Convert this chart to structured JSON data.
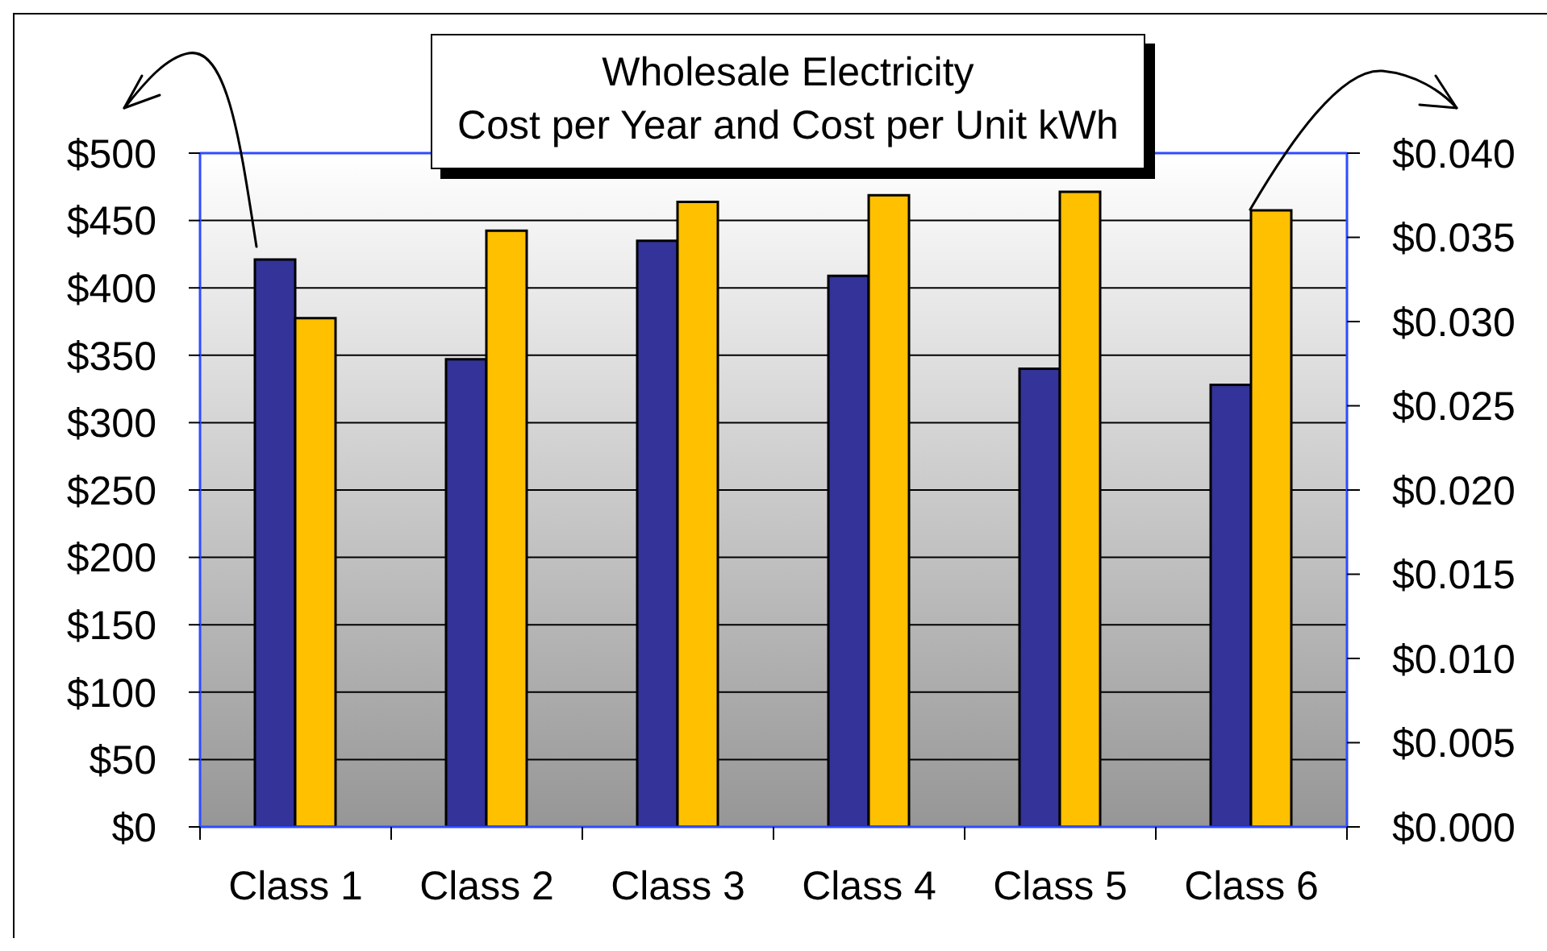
{
  "chart_data": {
    "type": "bar",
    "title": "Wholesale Electricity",
    "subtitle": "Cost per Year and Cost per Unit kWh",
    "categories": [
      "Class 1",
      "Class 2",
      "Class 3",
      "Class 4",
      "Class 5",
      "Class 6"
    ],
    "series": [
      {
        "color": "#333399",
        "values": [
          421,
          347,
          435,
          409,
          340,
          328
        ]
      },
      {
        "color": "#ffc000",
        "axis": "y2",
        "values": [
          0.0302,
          0.0354,
          0.0371,
          0.0375,
          0.0377,
          0.0366
        ]
      }
    ],
    "ylim": [
      0,
      500
    ],
    "yticks": [
      {
        "value": 0,
        "label": "$0"
      },
      {
        "value": 50,
        "label": "$50"
      },
      {
        "value": 100,
        "label": "$100"
      },
      {
        "value": 150,
        "label": "$150"
      },
      {
        "value": 200,
        "label": "$200"
      },
      {
        "value": 250,
        "label": "$250"
      },
      {
        "value": 300,
        "label": "$300"
      },
      {
        "value": 350,
        "label": "$350"
      },
      {
        "value": 400,
        "label": "$400"
      },
      {
        "value": 450,
        "label": "$450"
      },
      {
        "value": 500,
        "label": "$500"
      }
    ],
    "y2lim": [
      0,
      0.04
    ],
    "y2ticks": [
      {
        "value": 0,
        "label": "$0.000"
      },
      {
        "value": 0.005,
        "label": "$0.005"
      },
      {
        "value": 0.01,
        "label": "$0.010"
      },
      {
        "value": 0.015,
        "label": "$0.015"
      },
      {
        "value": 0.02,
        "label": "$0.020"
      },
      {
        "value": 0.025,
        "label": "$0.025"
      },
      {
        "value": 0.03,
        "label": "$0.030"
      },
      {
        "value": 0.035,
        "label": "$0.035"
      },
      {
        "value": 0.04,
        "label": "$0.040"
      }
    ],
    "grid": "y"
  }
}
